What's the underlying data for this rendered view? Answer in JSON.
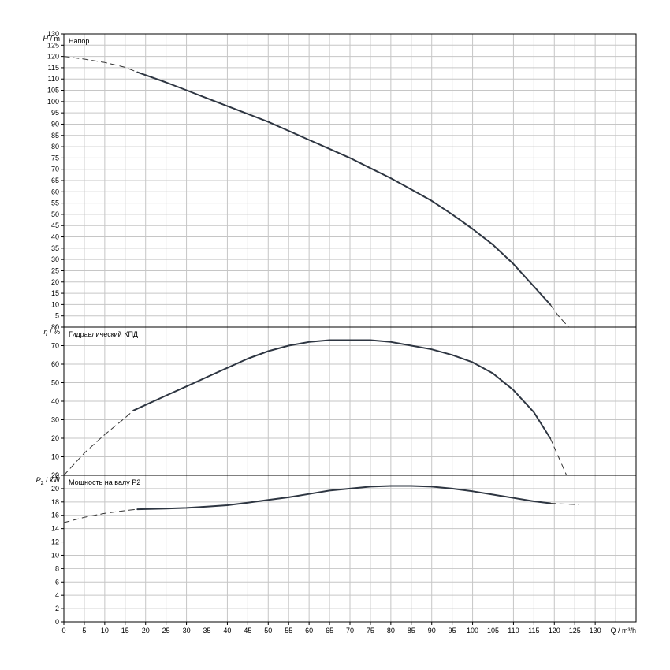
{
  "chart_data": [
    {
      "type": "line",
      "title": "Напор",
      "ylabel_symbol": "H",
      "ylabel_unit": " / m",
      "xlim": [
        0,
        140
      ],
      "ylim": [
        0,
        130
      ],
      "ytick_step": 5,
      "grid": true,
      "series": [
        {
          "style": "solid",
          "x": [
            18,
            25,
            30,
            35,
            40,
            45,
            50,
            55,
            60,
            65,
            70,
            75,
            80,
            85,
            90,
            95,
            100,
            105,
            110,
            115,
            119
          ],
          "y": [
            113,
            108.5,
            105,
            101.5,
            98,
            94.5,
            91,
            87,
            83,
            79,
            75,
            70.5,
            66,
            61,
            56,
            50,
            43.5,
            36.5,
            28,
            18,
            10
          ]
        },
        {
          "style": "dashed",
          "x": [
            0,
            5,
            10,
            15,
            18
          ],
          "y": [
            120,
            118.8,
            117.3,
            115.2,
            113
          ]
        },
        {
          "style": "dashed",
          "x": [
            119,
            121,
            123.5
          ],
          "y": [
            10,
            5,
            0
          ]
        }
      ]
    },
    {
      "type": "line",
      "title": "Гидравлический КПД",
      "ylabel_symbol": "η",
      "ylabel_unit": " / %",
      "xlim": [
        0,
        140
      ],
      "ylim": [
        0,
        80
      ],
      "ytick_step": 10,
      "grid": true,
      "series": [
        {
          "style": "solid",
          "x": [
            17,
            20,
            25,
            30,
            35,
            40,
            45,
            50,
            55,
            60,
            65,
            70,
            75,
            80,
            85,
            90,
            95,
            100,
            105,
            110,
            115,
            119
          ],
          "y": [
            35,
            38,
            43,
            48,
            53,
            58,
            63,
            67,
            70,
            72,
            73,
            73,
            73,
            72,
            70,
            68,
            65,
            61,
            55,
            46,
            34,
            20
          ]
        },
        {
          "style": "dashed",
          "x": [
            0,
            5,
            10,
            15,
            17
          ],
          "y": [
            0,
            12,
            22,
            31,
            35
          ]
        },
        {
          "style": "dashed",
          "x": [
            119,
            121,
            123
          ],
          "y": [
            20,
            10,
            0
          ]
        }
      ]
    },
    {
      "type": "line",
      "title": "Мощность на валу P2",
      "ylabel_symbol": "P",
      "ylabel_sub": "2",
      "ylabel_unit": " / kW",
      "xlim": [
        0,
        140
      ],
      "ylim": [
        0,
        22
      ],
      "ytick_step": 2,
      "xlabel": "Q / m³/h",
      "xtick_step": 5,
      "xtick_max": 130,
      "grid": true,
      "series": [
        {
          "style": "solid",
          "x": [
            18,
            25,
            30,
            35,
            40,
            45,
            50,
            55,
            60,
            65,
            70,
            75,
            80,
            85,
            90,
            95,
            100,
            105,
            110,
            115,
            119
          ],
          "y": [
            16.9,
            17.0,
            17.1,
            17.3,
            17.5,
            17.9,
            18.3,
            18.7,
            19.2,
            19.7,
            20.0,
            20.3,
            20.4,
            20.4,
            20.3,
            20.0,
            19.6,
            19.1,
            18.6,
            18.1,
            17.8
          ]
        },
        {
          "style": "dashed",
          "x": [
            0,
            5,
            10,
            15,
            18
          ],
          "y": [
            14.9,
            15.7,
            16.3,
            16.7,
            16.9
          ]
        },
        {
          "style": "dashed",
          "x": [
            119,
            122,
            126
          ],
          "y": [
            17.8,
            17.7,
            17.6
          ]
        }
      ]
    }
  ]
}
